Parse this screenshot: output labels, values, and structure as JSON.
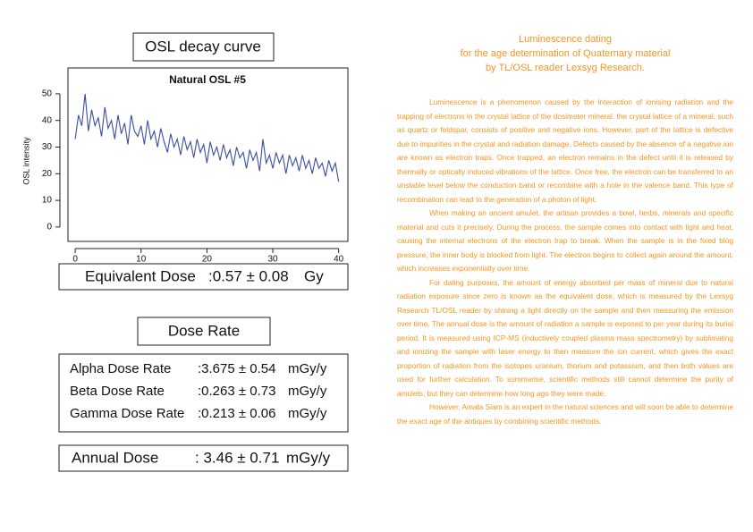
{
  "chart_heading": "OSL decay curve",
  "chart_data": {
    "type": "line",
    "title": "Natural OSL #5",
    "y_label": "OSL intensity",
    "x": [
      0,
      0.5,
      1,
      1.5,
      2,
      2.5,
      3,
      3.5,
      4,
      4.5,
      5,
      5.5,
      6,
      6.5,
      7,
      7.5,
      8,
      8.5,
      9,
      9.5,
      10,
      10.5,
      11,
      11.5,
      12,
      12.5,
      13,
      13.5,
      14,
      14.5,
      15,
      15.5,
      16,
      16.5,
      17,
      17.5,
      18,
      18.5,
      19,
      19.5,
      20,
      20.5,
      21,
      21.5,
      22,
      22.5,
      23,
      23.5,
      24,
      24.5,
      25,
      25.5,
      26,
      26.5,
      27,
      27.5,
      28,
      28.5,
      29,
      29.5,
      30,
      30.5,
      31,
      31.5,
      32,
      32.5,
      33,
      33.5,
      34,
      34.5,
      35,
      35.5,
      36,
      36.5,
      37,
      37.5,
      38,
      38.5,
      39,
      39.5,
      40
    ],
    "series": [
      {
        "color": "#3a4fa0",
        "values": [
          33,
          42,
          38,
          50,
          36,
          44,
          38,
          41,
          34,
          45,
          37,
          40,
          33,
          42,
          35,
          39,
          31,
          42,
          36,
          34,
          38,
          31,
          40,
          33,
          36,
          30,
          37,
          32,
          28,
          35,
          30,
          33,
          27,
          34,
          29,
          32,
          26,
          33,
          28,
          31,
          24,
          32,
          27,
          30,
          25,
          31,
          26,
          29,
          23,
          30,
          26,
          28,
          22,
          29,
          25,
          28,
          21,
          33,
          24,
          27,
          22,
          28,
          24,
          27,
          20,
          27,
          23,
          26,
          21,
          27,
          22,
          25,
          20,
          26,
          22,
          24,
          19,
          25,
          21,
          24,
          17
        ]
      }
    ],
    "xlim": [
      -1.1,
      41.4
    ],
    "ylim": [
      -5.4,
      59.7
    ],
    "xticks": [
      0,
      10,
      20,
      30,
      40
    ],
    "yticks": [
      0,
      10,
      20,
      30,
      40,
      50
    ]
  },
  "equivalent_dose": {
    "label": "Equivalent Dose",
    "value": ":0.57 ± 0.08",
    "unit": "Gy"
  },
  "dose_rate_heading": "Dose Rate",
  "dose_rates": [
    {
      "label": "Alpha Dose Rate",
      "value": ":3.675 ± 0.54",
      "unit": "mGy/y"
    },
    {
      "label": "Beta Dose Rate",
      "value": ":0.263 ± 0.73",
      "unit": "mGy/y"
    },
    {
      "label": "Gamma Dose Rate",
      "value": ":0.213 ± 0.06",
      "unit": "mGy/y"
    }
  ],
  "annual_dose": {
    "label": "Annual Dose",
    "value": ": 3.46 ± 0.71",
    "unit": "mGy/y"
  },
  "article": {
    "title": [
      "Luminescence dating",
      "for the age determination of Quaternary material",
      "by TL/OSL reader Lexsyg Research."
    ],
    "paragraphs": [
      "Luminescence is a phenomenon caused by the interaction of ionising radiation and the trapping of electrons in the crystal lattice of the dosimeter mineral. the crystal lattice of a mineral, such as quartz or feldspar, consists of positive and negative ions. However, part of the lattice is defective due to impurities in the crystal and radiation damage. Defects caused by the absence of a negative ion are known as electron traps. Once trapped, an electron remains in the defect until it is released by thermally or optically induced vibrations of the lattice. Once free, the electron can be transferred to an unstable level below the conduction band or recombine with a hole in the valence band. This type of recombination can lead to the generation of a photon of light.",
      "When making an ancient amulet, the artisan provides a bowl, herbs, minerals and specific material and cuts it precisely. During the process, the sample comes into contact with light and heat, causing the internal electrons of the electron trap to break. When the sample is in the fixed blog pressure, the inner body is blocked from light. The electron begins to collect again around the amount, which increases exponentially over time.",
      "For dating purposes, the amount of energy absorbed per mass of mineral due to natural radiation exposure since zero is known as the equivalent dose, which is measured by the Lexsyg Research TL/OSL reader by shining a light directly on the sample and then measuring the emission over time. The annual dose is the amount of radiation a sample is exposed to per year during its burial period. It is measured using ICP-MS (inductively coupled plasma mass spectrometry) by sublimating and ionizing the sample with laser energy to then measure the ion current, which gives the exact proportion of radiation from the isotopes uranium, thorium and potassium, and then both values are used for further calculation. To summarise, scientific methods still cannot determine the purity of amulets, but they can determine how long ago they were made.",
      "However, Amata Siam is an expert in the natural sciences and will soon be able to determine the exact age of the antiques by combining scientific methods."
    ]
  }
}
